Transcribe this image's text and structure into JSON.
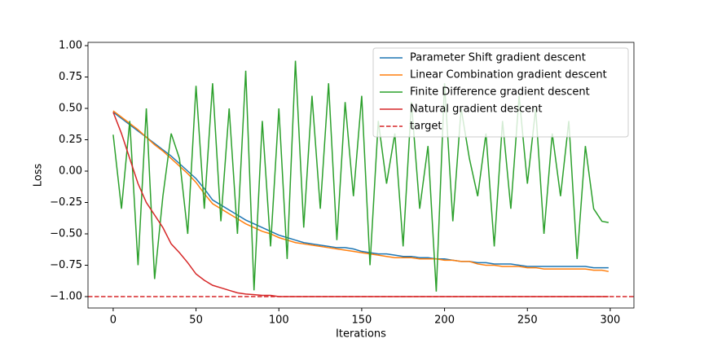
{
  "chart_data": {
    "type": "line",
    "x_label": "Iterations",
    "y_label": "Loss",
    "x": [
      0,
      5,
      10,
      15,
      20,
      25,
      30,
      35,
      40,
      45,
      50,
      55,
      60,
      65,
      70,
      75,
      80,
      85,
      90,
      95,
      100,
      105,
      110,
      115,
      120,
      125,
      130,
      135,
      140,
      145,
      150,
      155,
      160,
      165,
      170,
      175,
      180,
      185,
      190,
      195,
      200,
      205,
      210,
      215,
      220,
      225,
      230,
      235,
      240,
      245,
      250,
      255,
      260,
      265,
      270,
      275,
      280,
      285,
      290,
      295,
      299
    ],
    "series": [
      {
        "name": "Parameter Shift gradient descent",
        "color": "#1f77b4",
        "values": [
          0.47,
          0.42,
          0.37,
          0.32,
          0.27,
          0.22,
          0.17,
          0.12,
          0.06,
          0.0,
          -0.06,
          -0.14,
          -0.23,
          -0.27,
          -0.31,
          -0.35,
          -0.39,
          -0.42,
          -0.45,
          -0.48,
          -0.51,
          -0.53,
          -0.55,
          -0.57,
          -0.58,
          -0.59,
          -0.6,
          -0.61,
          -0.61,
          -0.62,
          -0.64,
          -0.65,
          -0.66,
          -0.66,
          -0.67,
          -0.68,
          -0.68,
          -0.69,
          -0.69,
          -0.7,
          -0.7,
          -0.71,
          -0.72,
          -0.72,
          -0.73,
          -0.73,
          -0.74,
          -0.74,
          -0.74,
          -0.75,
          -0.76,
          -0.76,
          -0.76,
          -0.76,
          -0.76,
          -0.76,
          -0.76,
          -0.76,
          -0.77,
          -0.77,
          -0.77
        ]
      },
      {
        "name": "Linear Combination gradient descent",
        "color": "#ff7f0e",
        "values": [
          0.48,
          0.43,
          0.38,
          0.33,
          0.27,
          0.21,
          0.16,
          0.1,
          0.04,
          -0.02,
          -0.09,
          -0.18,
          -0.26,
          -0.3,
          -0.34,
          -0.38,
          -0.42,
          -0.45,
          -0.48,
          -0.5,
          -0.53,
          -0.55,
          -0.57,
          -0.58,
          -0.59,
          -0.6,
          -0.61,
          -0.62,
          -0.63,
          -0.64,
          -0.65,
          -0.66,
          -0.67,
          -0.68,
          -0.69,
          -0.69,
          -0.69,
          -0.7,
          -0.7,
          -0.7,
          -0.71,
          -0.71,
          -0.72,
          -0.72,
          -0.74,
          -0.75,
          -0.75,
          -0.76,
          -0.76,
          -0.76,
          -0.77,
          -0.77,
          -0.78,
          -0.78,
          -0.78,
          -0.78,
          -0.78,
          -0.78,
          -0.79,
          -0.79,
          -0.8
        ]
      },
      {
        "name": "Finite Difference gradient descent",
        "color": "#2ca02c",
        "values": [
          0.29,
          -0.3,
          0.4,
          -0.75,
          0.5,
          -0.86,
          -0.2,
          0.3,
          0.1,
          -0.5,
          0.68,
          -0.3,
          0.7,
          -0.4,
          0.5,
          -0.5,
          0.8,
          -0.95,
          0.4,
          -0.6,
          0.5,
          -0.7,
          0.88,
          -0.45,
          0.6,
          -0.3,
          0.7,
          -0.55,
          0.55,
          -0.2,
          0.6,
          -0.75,
          0.4,
          -0.1,
          0.3,
          -0.6,
          0.55,
          -0.3,
          0.2,
          -0.96,
          0.7,
          -0.4,
          0.5,
          0.1,
          -0.2,
          0.3,
          -0.6,
          0.4,
          -0.3,
          0.6,
          -0.1,
          0.5,
          -0.5,
          0.3,
          -0.2,
          0.4,
          -0.7,
          0.2,
          -0.3,
          -0.4,
          -0.41
        ]
      },
      {
        "name": "Natural gradient descent",
        "color": "#d62728",
        "values": [
          0.47,
          0.3,
          0.1,
          -0.1,
          -0.25,
          -0.35,
          -0.45,
          -0.58,
          -0.65,
          -0.73,
          -0.82,
          -0.87,
          -0.91,
          -0.93,
          -0.95,
          -0.97,
          -0.98,
          -0.985,
          -0.99,
          -0.99,
          -1.0,
          -1.0,
          -1.0,
          -1.0,
          -1.0,
          -1.0,
          -1.0,
          -1.0,
          -1.0,
          -1.0,
          -1.0,
          -1.0,
          -1.0,
          -1.0,
          -1.0,
          -1.0,
          -1.0,
          -1.0,
          -1.0,
          -1.0,
          -1.0,
          -1.0,
          -1.0,
          -1.0,
          -1.0,
          -1.0,
          -1.0,
          -1.0,
          -1.0,
          -1.0,
          -1.0,
          -1.0,
          -1.0,
          -1.0,
          -1.0,
          -1.0,
          -1.0,
          -1.0,
          -1.0,
          -1.0,
          -1.0
        ]
      }
    ],
    "hlines": [
      {
        "name": "target",
        "value": -1,
        "color": "#d62728",
        "style": "dashed"
      }
    ],
    "xlim": [
      -15.2,
      314.3
    ],
    "ylim": [
      -1.091,
      1.026
    ],
    "xticks": [
      0,
      50,
      100,
      150,
      200,
      250,
      300
    ],
    "yticks": [
      {
        "value": -1,
        "label": "−1.00"
      },
      {
        "value": -0.75,
        "label": "−0.75"
      },
      {
        "value": -0.5,
        "label": "−0.50"
      },
      {
        "value": -0.25,
        "label": "−0.25"
      },
      {
        "value": 0,
        "label": "0.00"
      },
      {
        "value": 0.25,
        "label": "0.25"
      },
      {
        "value": 0.5,
        "label": "0.50"
      },
      {
        "value": 0.75,
        "label": "0.75"
      },
      {
        "value": 1,
        "label": "1.00"
      }
    ],
    "legend": "upper right"
  }
}
